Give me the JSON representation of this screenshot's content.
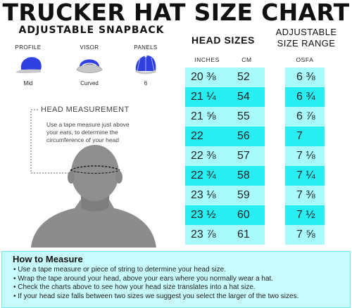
{
  "title": "TRUCKER HAT SIZE CHART",
  "subtitle": "ADJUSTABLE SNAPBACK",
  "features": [
    {
      "label": "PROFILE",
      "value": "Mid",
      "icon": "profile-hat-icon"
    },
    {
      "label": "VISOR",
      "value": "Curved",
      "icon": "visor-hat-icon"
    },
    {
      "label": "PANELS",
      "value": "6",
      "icon": "panels-hat-icon"
    }
  ],
  "head_measurement": {
    "title": "HEAD MEASUREMENT",
    "description": "Use a tape measure just above your ears, to determine the circumference of your head"
  },
  "head_sizes": {
    "title": "HEAD SIZES",
    "col_inches": "INCHES",
    "col_cm": "CM"
  },
  "adjustable": {
    "title_line1": "ADJUSTABLE",
    "title_line2": "SIZE RANGE",
    "col_osfa": "OSFA"
  },
  "rows": [
    {
      "inches": "20 ⅜",
      "cm": "52",
      "osfa": "6 ⅜"
    },
    {
      "inches": "21 ¼",
      "cm": "54",
      "osfa": "6 ¾"
    },
    {
      "inches": "21 ⅝",
      "cm": "55",
      "osfa": "6 ⅞"
    },
    {
      "inches": "22",
      "cm": "56",
      "osfa": "7"
    },
    {
      "inches": "22 ⅜",
      "cm": "57",
      "osfa": "7 ⅛"
    },
    {
      "inches": "22 ¾",
      "cm": "58",
      "osfa": "7 ¼"
    },
    {
      "inches": "23 ⅛",
      "cm": "59",
      "osfa": "7 ⅜"
    },
    {
      "inches": "23 ½",
      "cm": "60",
      "osfa": "7 ½"
    },
    {
      "inches": "23 ⅞",
      "cm": "61",
      "osfa": "7 ⅝"
    }
  ],
  "how_to": {
    "title": "How to Measure",
    "items": [
      "• Use a tape measure or piece of string to determine your head size.",
      "• Wrap the tape around your head, above your ears where you normally wear a hat.",
      "• Check the charts above to see how your head size translates into a hat size.",
      "• If your head size falls between two sizes we suggest you select the larger of the two sizes."
    ]
  },
  "colors": {
    "row_light": "#a9fafb",
    "row_dark": "#28eef2",
    "hat_blue": "#2f3fe0",
    "panel_bg": "#c8fbfb"
  }
}
